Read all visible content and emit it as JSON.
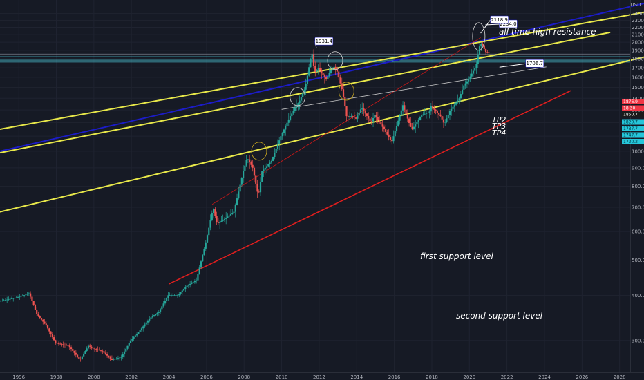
{
  "chart_data": {
    "type": "candlestick",
    "symbol_unit": "USD",
    "x_axis": {
      "ticks": [
        "1996",
        "1998",
        "2000",
        "2002",
        "2004",
        "2006",
        "2008",
        "2010",
        "2012",
        "2014",
        "2016",
        "2018",
        "2020",
        "2022",
        "2024",
        "2026",
        "2028"
      ],
      "range": [
        1995.0,
        2029.3
      ]
    },
    "y_axis": {
      "scale": "log",
      "ticks": [
        "300.0",
        "400.0",
        "500.0",
        "600.0",
        "700.0",
        "800.0",
        "900.0",
        "1000.0",
        "1100.0",
        "1200.0",
        "1300.0",
        "1400.0",
        "1500.0",
        "1600.0",
        "1700.0",
        "1800.0",
        "1900.0",
        "2000.0",
        "2100.0",
        "2200.0",
        "2300.0",
        "2400.0"
      ],
      "range": [
        265,
        2560
      ],
      "position": "right"
    },
    "price_series": [
      [
        1995.0,
        385
      ],
      [
        1996.0,
        395
      ],
      [
        1996.6,
        405
      ],
      [
        1997.0,
        355
      ],
      [
        1997.5,
        330
      ],
      [
        1998.0,
        295
      ],
      [
        1998.7,
        290
      ],
      [
        1999.3,
        265
      ],
      [
        1999.75,
        290
      ],
      [
        2000.0,
        285
      ],
      [
        2000.5,
        280
      ],
      [
        2001.0,
        265
      ],
      [
        2001.5,
        270
      ],
      [
        2002.0,
        300
      ],
      [
        2002.5,
        320
      ],
      [
        2003.0,
        345
      ],
      [
        2003.5,
        360
      ],
      [
        2004.0,
        400
      ],
      [
        2004.5,
        400
      ],
      [
        2005.0,
        425
      ],
      [
        2005.5,
        440
      ],
      [
        2006.0,
        560
      ],
      [
        2006.4,
        700
      ],
      [
        2006.6,
        630
      ],
      [
        2007.0,
        650
      ],
      [
        2007.5,
        680
      ],
      [
        2008.0,
        880
      ],
      [
        2008.2,
        960
      ],
      [
        2008.5,
        900
      ],
      [
        2008.8,
        750
      ],
      [
        2009.0,
        880
      ],
      [
        2009.5,
        940
      ],
      [
        2010.0,
        1100
      ],
      [
        2010.5,
        1250
      ],
      [
        2011.0,
        1380
      ],
      [
        2011.3,
        1500
      ],
      [
        2011.65,
        1880
      ],
      [
        2011.8,
        1650
      ],
      [
        2012.0,
        1700
      ],
      [
        2012.4,
        1580
      ],
      [
        2012.8,
        1720
      ],
      [
        2013.0,
        1660
      ],
      [
        2013.3,
        1450
      ],
      [
        2013.5,
        1250
      ],
      [
        2013.8,
        1250
      ],
      [
        2014.0,
        1230
      ],
      [
        2014.3,
        1320
      ],
      [
        2014.8,
        1200
      ],
      [
        2015.0,
        1260
      ],
      [
        2015.5,
        1150
      ],
      [
        2015.9,
        1060
      ],
      [
        2016.0,
        1100
      ],
      [
        2016.5,
        1340
      ],
      [
        2016.9,
        1170
      ],
      [
        2017.0,
        1150
      ],
      [
        2017.5,
        1260
      ],
      [
        2017.9,
        1280
      ],
      [
        2018.0,
        1330
      ],
      [
        2018.5,
        1250
      ],
      [
        2018.7,
        1190
      ],
      [
        2019.0,
        1290
      ],
      [
        2019.5,
        1400
      ],
      [
        2019.75,
        1520
      ],
      [
        2020.0,
        1580
      ],
      [
        2020.2,
        1650
      ],
      [
        2020.4,
        1720
      ],
      [
        2020.6,
        1970
      ],
      [
        2020.7,
        1990
      ],
      [
        2020.9,
        1880
      ],
      [
        2021.0,
        1877
      ]
    ],
    "lines": [
      {
        "name": "all time high resistance",
        "color": "#1c1cc8",
        "points": [
          [
            1995.0,
            1000
          ],
          [
            2029.3,
            2560
          ]
        ]
      },
      {
        "name": "upper yellow channel",
        "color": "#e8e84a",
        "points": [
          [
            1995.0,
            1150
          ],
          [
            2029.3,
            2420
          ]
        ]
      },
      {
        "name": "middle yellow channel",
        "color": "#e8e84a",
        "points": [
          [
            1995.0,
            990
          ],
          [
            2027.5,
            2130
          ]
        ]
      },
      {
        "name": "lower yellow channel",
        "color": "#e8e84a",
        "points": [
          [
            1995.0,
            680
          ],
          [
            2029.3,
            1820
          ]
        ]
      },
      {
        "name": "red support",
        "color": "#e01e1e",
        "points": [
          [
            2004.0,
            430
          ],
          [
            2025.4,
            1470
          ]
        ]
      },
      {
        "name": "red diagonal",
        "color": "#d01818",
        "points": [
          [
            2006.3,
            713
          ],
          [
            2020.6,
            2060
          ]
        ]
      },
      {
        "name": "white trendline",
        "color": "#c8c8c8",
        "points": [
          [
            2010.0,
            1305
          ],
          [
            2024.1,
            1710
          ]
        ]
      }
    ],
    "horizontal_levels": [
      1855,
      1825,
      1785,
      1763,
      1720
    ],
    "callouts": [
      {
        "label": "2234.0",
        "year": 2020.85,
        "price": 2234.0
      },
      {
        "label": "2118.9",
        "year": 2020.6,
        "price": 2118.9
      },
      {
        "label": "1931.4",
        "year": 2011.85,
        "price": 1931.4
      },
      {
        "label": "1706.7",
        "year": 2021.6,
        "price": 1706.7
      }
    ],
    "circles": [
      {
        "year": 2008.8,
        "price": 1000,
        "color": "#c0a020"
      },
      {
        "year": 2010.85,
        "price": 1415,
        "color": "#c8c8c8"
      },
      {
        "year": 2012.85,
        "price": 1780,
        "color": "#c8c8c8"
      },
      {
        "year": 2013.45,
        "price": 1465,
        "color": "#c0a020"
      },
      {
        "year": 2020.5,
        "price": 2075,
        "color": "#c8c8c8"
      }
    ],
    "annotations": [
      "all time high resistance",
      "TP2",
      "TP3",
      "TP4",
      "first support level",
      "second support level"
    ],
    "price_scale_tags": [
      {
        "label": "1876.9",
        "color": "#f23645"
      },
      {
        "label": "18:30",
        "color": "#f23645"
      },
      {
        "label": "1850.7",
        "color": "#1a1a1a"
      },
      {
        "label": "1829.7",
        "color": "#26c6da"
      },
      {
        "label": "1787.7",
        "color": "#26c6da"
      },
      {
        "label": "1747.7",
        "color": "#26c6da"
      },
      {
        "label": "1720.2",
        "color": "#26c6da"
      }
    ],
    "colors": {
      "background": "#161a25",
      "up_candle": "#26a69a",
      "down_candle": "#ef5350",
      "level_lines": "#4dd0e1",
      "grid": "#1f2330"
    }
  }
}
